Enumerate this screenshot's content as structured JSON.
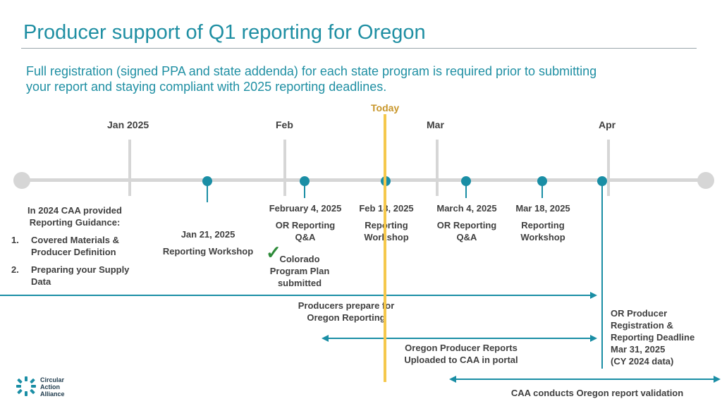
{
  "slide": {
    "title": "Producer support of Q1 reporting for Oregon",
    "subtitle_line1": "Full registration (signed PPA and state addenda) for each state program is required prior to submitting",
    "subtitle_line2": "your report and staying compliant with 2025 reporting deadlines."
  },
  "timeline": {
    "today_label": "Today",
    "months": [
      "Jan 2025",
      "Feb",
      "Mar",
      "Apr"
    ],
    "events": [
      {
        "date": "Jan 21, 2025",
        "label": "Reporting Workshop"
      },
      {
        "date": "February 4, 2025",
        "label_line1": "OR Reporting",
        "label_line2": "Q&A"
      },
      {
        "date": "Feb 18, 2025",
        "label_line1": "Reporting",
        "label_line2": "Workshop"
      },
      {
        "date": "March 4, 2025",
        "label_line1": "OR Reporting",
        "label_line2": "Q&A"
      },
      {
        "date": "Mar 18, 2025",
        "label_line1": "Reporting",
        "label_line2": "Workshop"
      }
    ],
    "guidance": {
      "line1": "In 2024 CAA provided",
      "line2": "Reporting Guidance:",
      "items": [
        {
          "num": "1.",
          "line1": "Covered Materials &",
          "line2": "Producer Definition"
        },
        {
          "num": "2.",
          "line1": "Preparing your Supply",
          "line2": "Data"
        }
      ]
    },
    "colorado": {
      "check": "✓",
      "line1": "Colorado",
      "line2": "Program Plan",
      "line3": "submitted"
    },
    "ranges": [
      {
        "line1": "Producers prepare for",
        "line2": "Oregon Reporting"
      },
      {
        "line1": "Oregon Producer Reports",
        "line2": "Uploaded to CAA in portal"
      },
      {
        "line1": "CAA conducts Oregon report validation"
      }
    ],
    "deadline": {
      "line1": "OR Producer",
      "line2": "Registration &",
      "line3": "Reporting Deadline",
      "line4": "Mar 31, 2025",
      "line5": "(CY 2024 data)"
    }
  },
  "logo": {
    "line1": "Circular",
    "line2": "Action",
    "line3": "Alliance"
  },
  "colors": {
    "accent": "#1a8ea5",
    "title": "#1f8fa3",
    "today": "#f5c84c",
    "check": "#2e8b3a"
  }
}
